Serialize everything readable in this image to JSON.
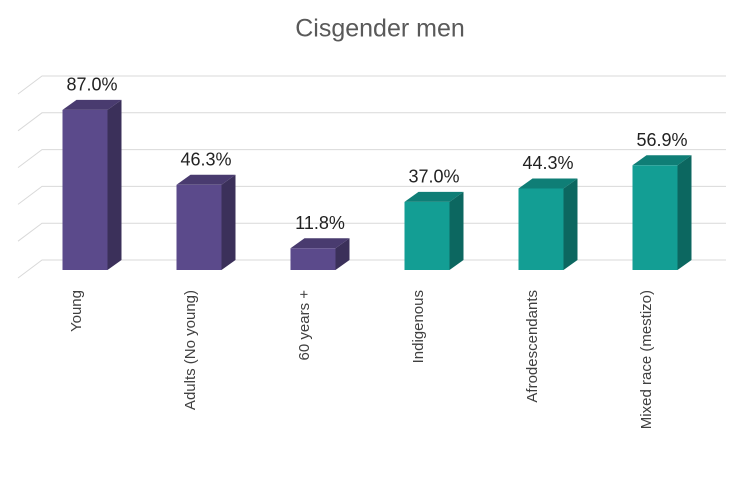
{
  "chart_data": {
    "type": "bar3d",
    "title": "Cisgender men",
    "categories": [
      "Young",
      "Adults (No young)",
      "60 years +",
      "Indigenous",
      "Afrodescendants",
      "Mixed race (mestizo)"
    ],
    "values": [
      87.0,
      46.3,
      11.8,
      37.0,
      44.3,
      56.9
    ],
    "value_labels": [
      "87.0%",
      "46.3%",
      "11.8%",
      "37.0%",
      "44.3%",
      "56.9%"
    ],
    "colors": [
      "#5b4a8b",
      "#5b4a8b",
      "#5b4a8b",
      "#139e94",
      "#139e94",
      "#139e94"
    ],
    "ylim": [
      0,
      100
    ],
    "yticks": [
      0,
      20,
      40,
      60,
      80,
      100
    ],
    "grid": true
  }
}
